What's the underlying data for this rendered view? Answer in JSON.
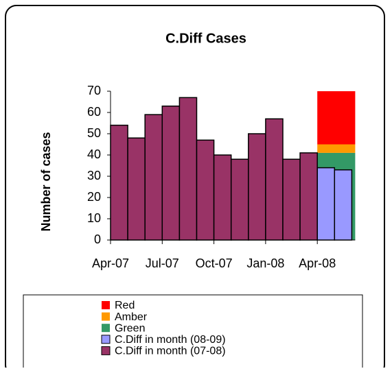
{
  "chart_data": {
    "type": "bar",
    "title": "C.Diff Cases",
    "y_label": "Number of cases",
    "categories": [
      "Apr-07",
      null,
      null,
      "Jul-07",
      null,
      null,
      "Oct-07",
      null,
      null,
      "Jan-08",
      null,
      null,
      "Apr-08",
      null
    ],
    "ylim": [
      0,
      70
    ],
    "yticks": [
      0,
      10,
      20,
      30,
      40,
      50,
      60,
      70
    ],
    "series": [
      {
        "name": "Red",
        "color": "#ff0000",
        "kind": "area",
        "values": [
          null,
          null,
          null,
          null,
          null,
          null,
          null,
          null,
          null,
          null,
          null,
          null,
          25,
          25
        ]
      },
      {
        "name": "Amber",
        "color": "#ff9900",
        "kind": "area",
        "values": [
          null,
          null,
          null,
          null,
          null,
          null,
          null,
          null,
          null,
          null,
          null,
          null,
          4,
          4
        ]
      },
      {
        "name": "Green",
        "color": "#339966",
        "kind": "area",
        "values": [
          null,
          null,
          null,
          null,
          null,
          null,
          null,
          null,
          null,
          null,
          null,
          null,
          41,
          41
        ]
      },
      {
        "name": "C.Diff in month (08-09)",
        "color": "#9999ff",
        "kind": "column",
        "values": [
          null,
          null,
          null,
          null,
          null,
          null,
          null,
          null,
          null,
          null,
          null,
          null,
          34,
          33
        ]
      },
      {
        "name": "C.Diff in month (07-08)",
        "color": "#993366",
        "kind": "column",
        "values": [
          54,
          48,
          59,
          63,
          67,
          47,
          40,
          38,
          50,
          57,
          38,
          41,
          null,
          null
        ]
      }
    ]
  }
}
